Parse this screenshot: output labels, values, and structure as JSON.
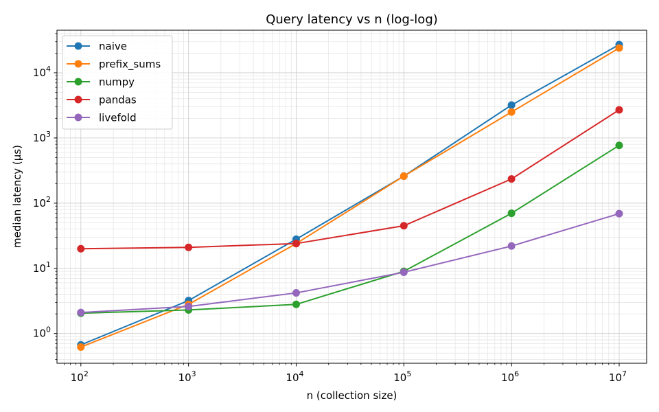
{
  "chart_data": {
    "type": "line",
    "title": "Query latency vs n (log-log)",
    "xlabel": "n (collection size)",
    "ylabel": "median latency (µs)",
    "xscale": "log",
    "yscale": "log",
    "xlim": [
      60,
      18000000
    ],
    "ylim": [
      0.35,
      45000
    ],
    "grid": true,
    "legend_position": "top-left",
    "x": [
      100,
      1000,
      10000,
      100000,
      1000000,
      10000000
    ],
    "x_tick_labels": [
      {
        "base": "10",
        "exp": "2"
      },
      {
        "base": "10",
        "exp": "3"
      },
      {
        "base": "10",
        "exp": "4"
      },
      {
        "base": "10",
        "exp": "5"
      },
      {
        "base": "10",
        "exp": "6"
      },
      {
        "base": "10",
        "exp": "7"
      }
    ],
    "y_ticks": [
      1,
      10,
      100,
      1000,
      10000
    ],
    "y_tick_labels": [
      {
        "base": "10",
        "exp": "0"
      },
      {
        "base": "10",
        "exp": "1"
      },
      {
        "base": "10",
        "exp": "2"
      },
      {
        "base": "10",
        "exp": "3"
      },
      {
        "base": "10",
        "exp": "4"
      }
    ],
    "series": [
      {
        "name": "naive",
        "color": "#1f77b4",
        "values": [
          0.67,
          3.2,
          28,
          260,
          3200,
          27000
        ]
      },
      {
        "name": "prefix_sums",
        "color": "#ff7f0e",
        "values": [
          0.62,
          2.8,
          24,
          260,
          2500,
          24000
        ]
      },
      {
        "name": "numpy",
        "color": "#2ca02c",
        "values": [
          2.05,
          2.3,
          2.8,
          9.0,
          70,
          770
        ]
      },
      {
        "name": "pandas",
        "color": "#d62728",
        "values": [
          20,
          21,
          24,
          45,
          235,
          2700
        ]
      },
      {
        "name": "livefold",
        "color": "#9467bd",
        "values": [
          2.1,
          2.6,
          4.2,
          8.7,
          22,
          69
        ]
      }
    ]
  }
}
